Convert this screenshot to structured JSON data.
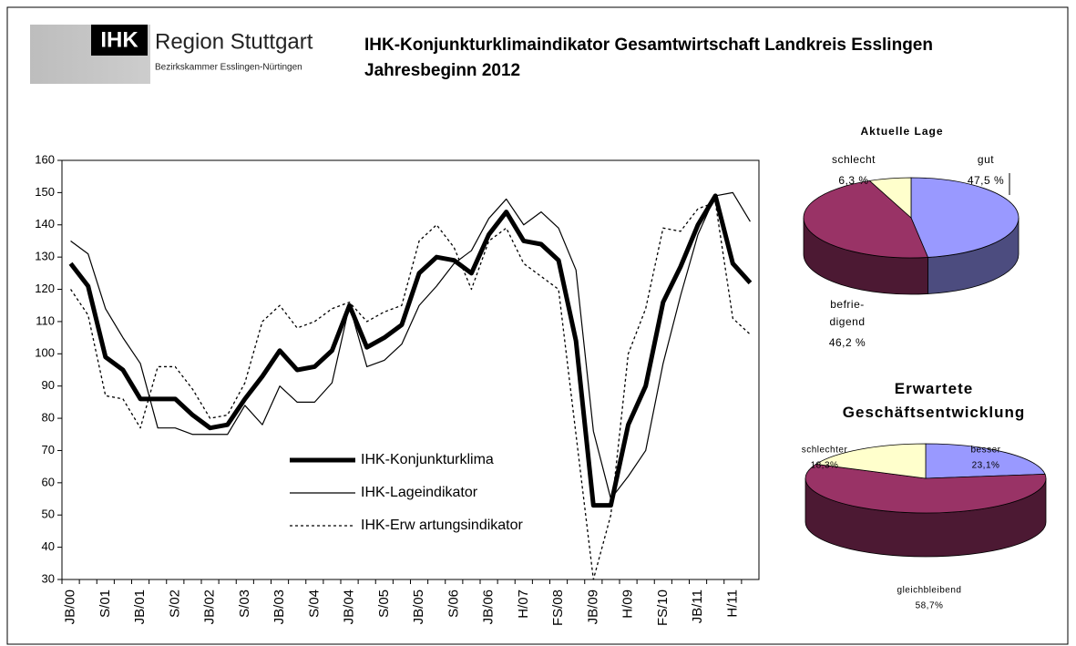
{
  "header": {
    "logo": "IHK",
    "brand": "Region Stuttgart",
    "sub": "Bezirkskammer Esslingen-Nürtingen"
  },
  "chart_data": [
    {
      "type": "line",
      "title": "IHK-Konjunkturklimaindikator Gesamtwirtschaft Landkreis Esslingen",
      "subtitle": "Jahresbeginn 2012",
      "categories": [
        "JB/00",
        null,
        "S/01",
        null,
        "JB/01",
        null,
        "S/02",
        null,
        "JB/02",
        null,
        "S/03",
        null,
        "JB/03",
        null,
        "S/04",
        null,
        "JB/04",
        null,
        "S/05",
        null,
        "JB/05",
        null,
        "S/06",
        null,
        "JB/06",
        null,
        "H/07",
        null,
        "FS/08",
        null,
        "JB/09",
        null,
        "H/09",
        null,
        "FS/10",
        null,
        "JB/11",
        null,
        "H/11",
        null
      ],
      "series": [
        {
          "name": "IHK-Konjunkturklima",
          "color": "#000000",
          "style": "bold",
          "values": [
            128,
            121,
            99,
            95,
            86,
            86,
            86,
            81,
            77,
            78,
            86,
            93,
            101,
            95,
            96,
            101,
            115,
            102,
            105,
            109,
            125,
            130,
            129,
            125,
            137,
            144,
            135,
            134,
            129,
            104,
            53,
            53,
            78,
            90,
            116,
            127,
            140,
            149,
            128,
            122
          ]
        },
        {
          "name": "IHK-Lageindikator",
          "color": "#000000",
          "style": "solid",
          "values": [
            135,
            131,
            114,
            105,
            97,
            77,
            77,
            75,
            75,
            75,
            84,
            78,
            90,
            85,
            85,
            91,
            115,
            96,
            98,
            103,
            115,
            121,
            128,
            132,
            142,
            148,
            140,
            144,
            139,
            126,
            76,
            55,
            62,
            70,
            97,
            118,
            137,
            149,
            150,
            141
          ]
        },
        {
          "name": "IHK-Erw artungsindikator",
          "color": "#000000",
          "style": "dashed",
          "values": [
            120,
            112,
            87,
            86,
            77,
            96,
            96,
            89,
            80,
            81,
            91,
            110,
            115,
            108,
            110,
            114,
            116,
            110,
            113,
            115,
            135,
            140,
            133,
            120,
            135,
            139,
            128,
            124,
            120,
            75,
            30,
            50,
            100,
            114,
            139,
            138,
            145,
            147,
            111,
            106
          ]
        }
      ],
      "ylim": [
        30,
        160
      ],
      "yticks": [
        30,
        40,
        50,
        60,
        70,
        80,
        90,
        100,
        110,
        120,
        130,
        140,
        150,
        160
      ],
      "grid": false,
      "legend": "bottom-center"
    },
    {
      "type": "pie",
      "title": "Aktuelle Lage",
      "categories": [
        "gut",
        "befrie-\ndigend",
        "schlecht"
      ],
      "values": [
        47.5,
        46.2,
        6.3
      ],
      "value_labels": [
        "47,5 %",
        "46,2 %",
        "6,3 %"
      ],
      "colors": [
        "#9999ff",
        "#993366",
        "#ffffcc"
      ],
      "3d": true
    },
    {
      "type": "pie",
      "title": "Erwartete\nGeschäftsentwicklung",
      "categories": [
        "besser",
        "gleichbleibend",
        "schlechter"
      ],
      "values": [
        23.1,
        58.7,
        18.3
      ],
      "value_labels": [
        "23,1%",
        "58,7%",
        "18,3%"
      ],
      "colors": [
        "#9999ff",
        "#993366",
        "#ffffcc"
      ],
      "3d": true
    }
  ]
}
